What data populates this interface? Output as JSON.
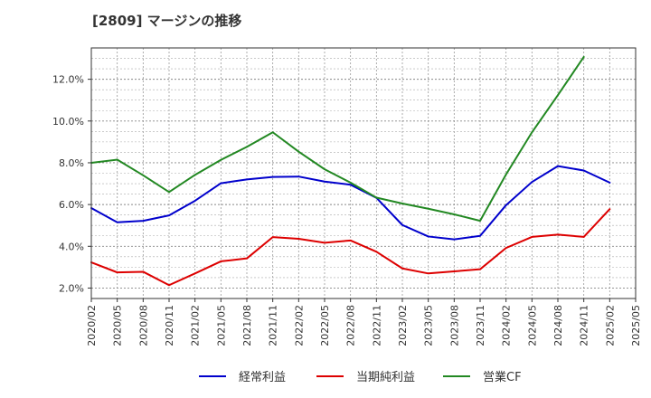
{
  "chart_data": {
    "type": "line",
    "title": "[2809]  マージンの推移",
    "x": [
      "2020/02",
      "2020/05",
      "2020/08",
      "2020/11",
      "2021/02",
      "2021/05",
      "2021/08",
      "2021/11",
      "2022/02",
      "2022/05",
      "2022/08",
      "2022/11",
      "2023/02",
      "2023/05",
      "2023/08",
      "2023/11",
      "2024/02",
      "2024/05",
      "2024/08",
      "2024/11",
      "2025/02",
      "2025/05"
    ],
    "ylim": [
      1.5,
      13.5
    ],
    "yticks": [
      2,
      4,
      6,
      8,
      10,
      12
    ],
    "ytick_labels": [
      "2.0%",
      "4.0%",
      "6.0%",
      "8.0%",
      "10.0%",
      "12.0%"
    ],
    "grid": true,
    "legend": "bottom",
    "series": [
      {
        "name": "経常利益",
        "color": "#0000cc",
        "values": [
          5.83,
          5.15,
          5.22,
          5.48,
          6.18,
          7.02,
          7.2,
          7.32,
          7.34,
          7.1,
          6.95,
          6.32,
          5.02,
          4.47,
          4.33,
          4.5,
          5.97,
          7.08,
          7.84,
          7.63,
          7.05,
          null
        ]
      },
      {
        "name": "当期純利益",
        "color": "#dd0000",
        "values": [
          3.23,
          2.75,
          2.78,
          2.14,
          2.7,
          3.28,
          3.42,
          4.44,
          4.36,
          4.17,
          4.28,
          3.74,
          2.94,
          2.7,
          2.8,
          2.9,
          3.92,
          4.45,
          4.56,
          4.45,
          5.78,
          null
        ]
      },
      {
        "name": "営業CF",
        "color": "#228822",
        "values": [
          8.0,
          8.15,
          7.4,
          6.6,
          7.42,
          8.14,
          8.76,
          9.46,
          8.53,
          7.69,
          7.05,
          6.33,
          6.05,
          5.8,
          5.53,
          5.22,
          7.44,
          9.46,
          11.24,
          13.07,
          null,
          null
        ]
      }
    ]
  }
}
